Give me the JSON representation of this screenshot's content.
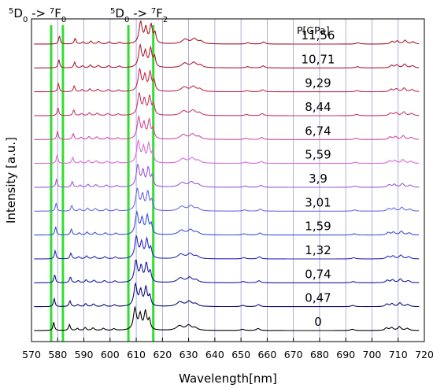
{
  "chart_data": {
    "type": "line",
    "xlabel": "Wavelength[nm]",
    "ylabel": "Intensity [a.u.]",
    "xlim": [
      570,
      720
    ],
    "xticks": [
      570,
      580,
      590,
      600,
      610,
      620,
      630,
      640,
      650,
      660,
      670,
      680,
      690,
      700,
      710,
      720
    ],
    "legend_title": "P[GPa]",
    "transition_labels": [
      {
        "text": "5D0 -> 7F0",
        "parts": [
          [
            "5",
            "sup"
          ],
          [
            "D",
            ""
          ],
          [
            "0",
            "sub"
          ],
          [
            " -> ",
            ""
          ],
          [
            "7",
            "sup"
          ],
          [
            "F",
            ""
          ],
          [
            "0",
            "sub"
          ]
        ]
      },
      {
        "text": "5D0 -> 7F2",
        "parts": [
          [
            "5",
            "sup"
          ],
          [
            "D",
            ""
          ],
          [
            "0",
            "sub"
          ],
          [
            " -> ",
            ""
          ],
          [
            "7",
            "sup"
          ],
          [
            "F",
            ""
          ],
          [
            "2",
            "sub"
          ]
        ]
      }
    ],
    "marker_lines": {
      "color": "#33dd33",
      "x": [
        577.5,
        582,
        607,
        616.5
      ]
    },
    "grid_color": "#9999dd",
    "series": [
      {
        "name": "0",
        "color": "#000000"
      },
      {
        "name": "0,47",
        "color": "#0a0a7a"
      },
      {
        "name": "0,74",
        "color": "#1a1aa0"
      },
      {
        "name": "1,32",
        "color": "#2a2abf"
      },
      {
        "name": "1,59",
        "color": "#3a4fd6"
      },
      {
        "name": "3,01",
        "color": "#6a6ae8"
      },
      {
        "name": "3,9",
        "color": "#9a5ad6"
      },
      {
        "name": "5,59",
        "color": "#d86ad8"
      },
      {
        "name": "6,74",
        "color": "#d04a9a"
      },
      {
        "name": "8,44",
        "color": "#c83a6a"
      },
      {
        "name": "9,29",
        "color": "#c02a4a"
      },
      {
        "name": "10,71",
        "color": "#b01e36"
      },
      {
        "name": "11,56",
        "color": "#a81a2a"
      }
    ],
    "peaks": [
      {
        "x": 578.5,
        "h": 1.0,
        "w": 0.35
      },
      {
        "x": 584.5,
        "h": 0.7,
        "w": 0.4
      },
      {
        "x": 587.5,
        "h": 0.25,
        "w": 0.5
      },
      {
        "x": 590.5,
        "h": 0.35,
        "w": 0.5
      },
      {
        "x": 593.5,
        "h": 0.3,
        "w": 0.6
      },
      {
        "x": 597.5,
        "h": 0.25,
        "w": 0.6
      },
      {
        "x": 601.5,
        "h": 0.2,
        "w": 0.6
      },
      {
        "x": 609.5,
        "h": 2.6,
        "w": 0.7
      },
      {
        "x": 611.5,
        "h": 1.8,
        "w": 0.6
      },
      {
        "x": 613.5,
        "h": 2.2,
        "w": 0.6
      },
      {
        "x": 615.0,
        "h": 1.2,
        "w": 0.5
      },
      {
        "x": 626.5,
        "h": 0.55,
        "w": 1.4
      },
      {
        "x": 630.0,
        "h": 0.6,
        "w": 1.2
      },
      {
        "x": 632.5,
        "h": 0.3,
        "w": 1.0
      },
      {
        "x": 650.5,
        "h": 0.15,
        "w": 0.8
      },
      {
        "x": 656.5,
        "h": 0.25,
        "w": 0.7
      },
      {
        "x": 692.5,
        "h": 0.15,
        "w": 0.8
      },
      {
        "x": 705.5,
        "h": 0.3,
        "w": 0.7
      },
      {
        "x": 707.5,
        "h": 0.35,
        "w": 0.7
      },
      {
        "x": 710.5,
        "h": 0.45,
        "w": 0.7
      },
      {
        "x": 713.5,
        "h": 0.25,
        "w": 0.8
      }
    ]
  }
}
